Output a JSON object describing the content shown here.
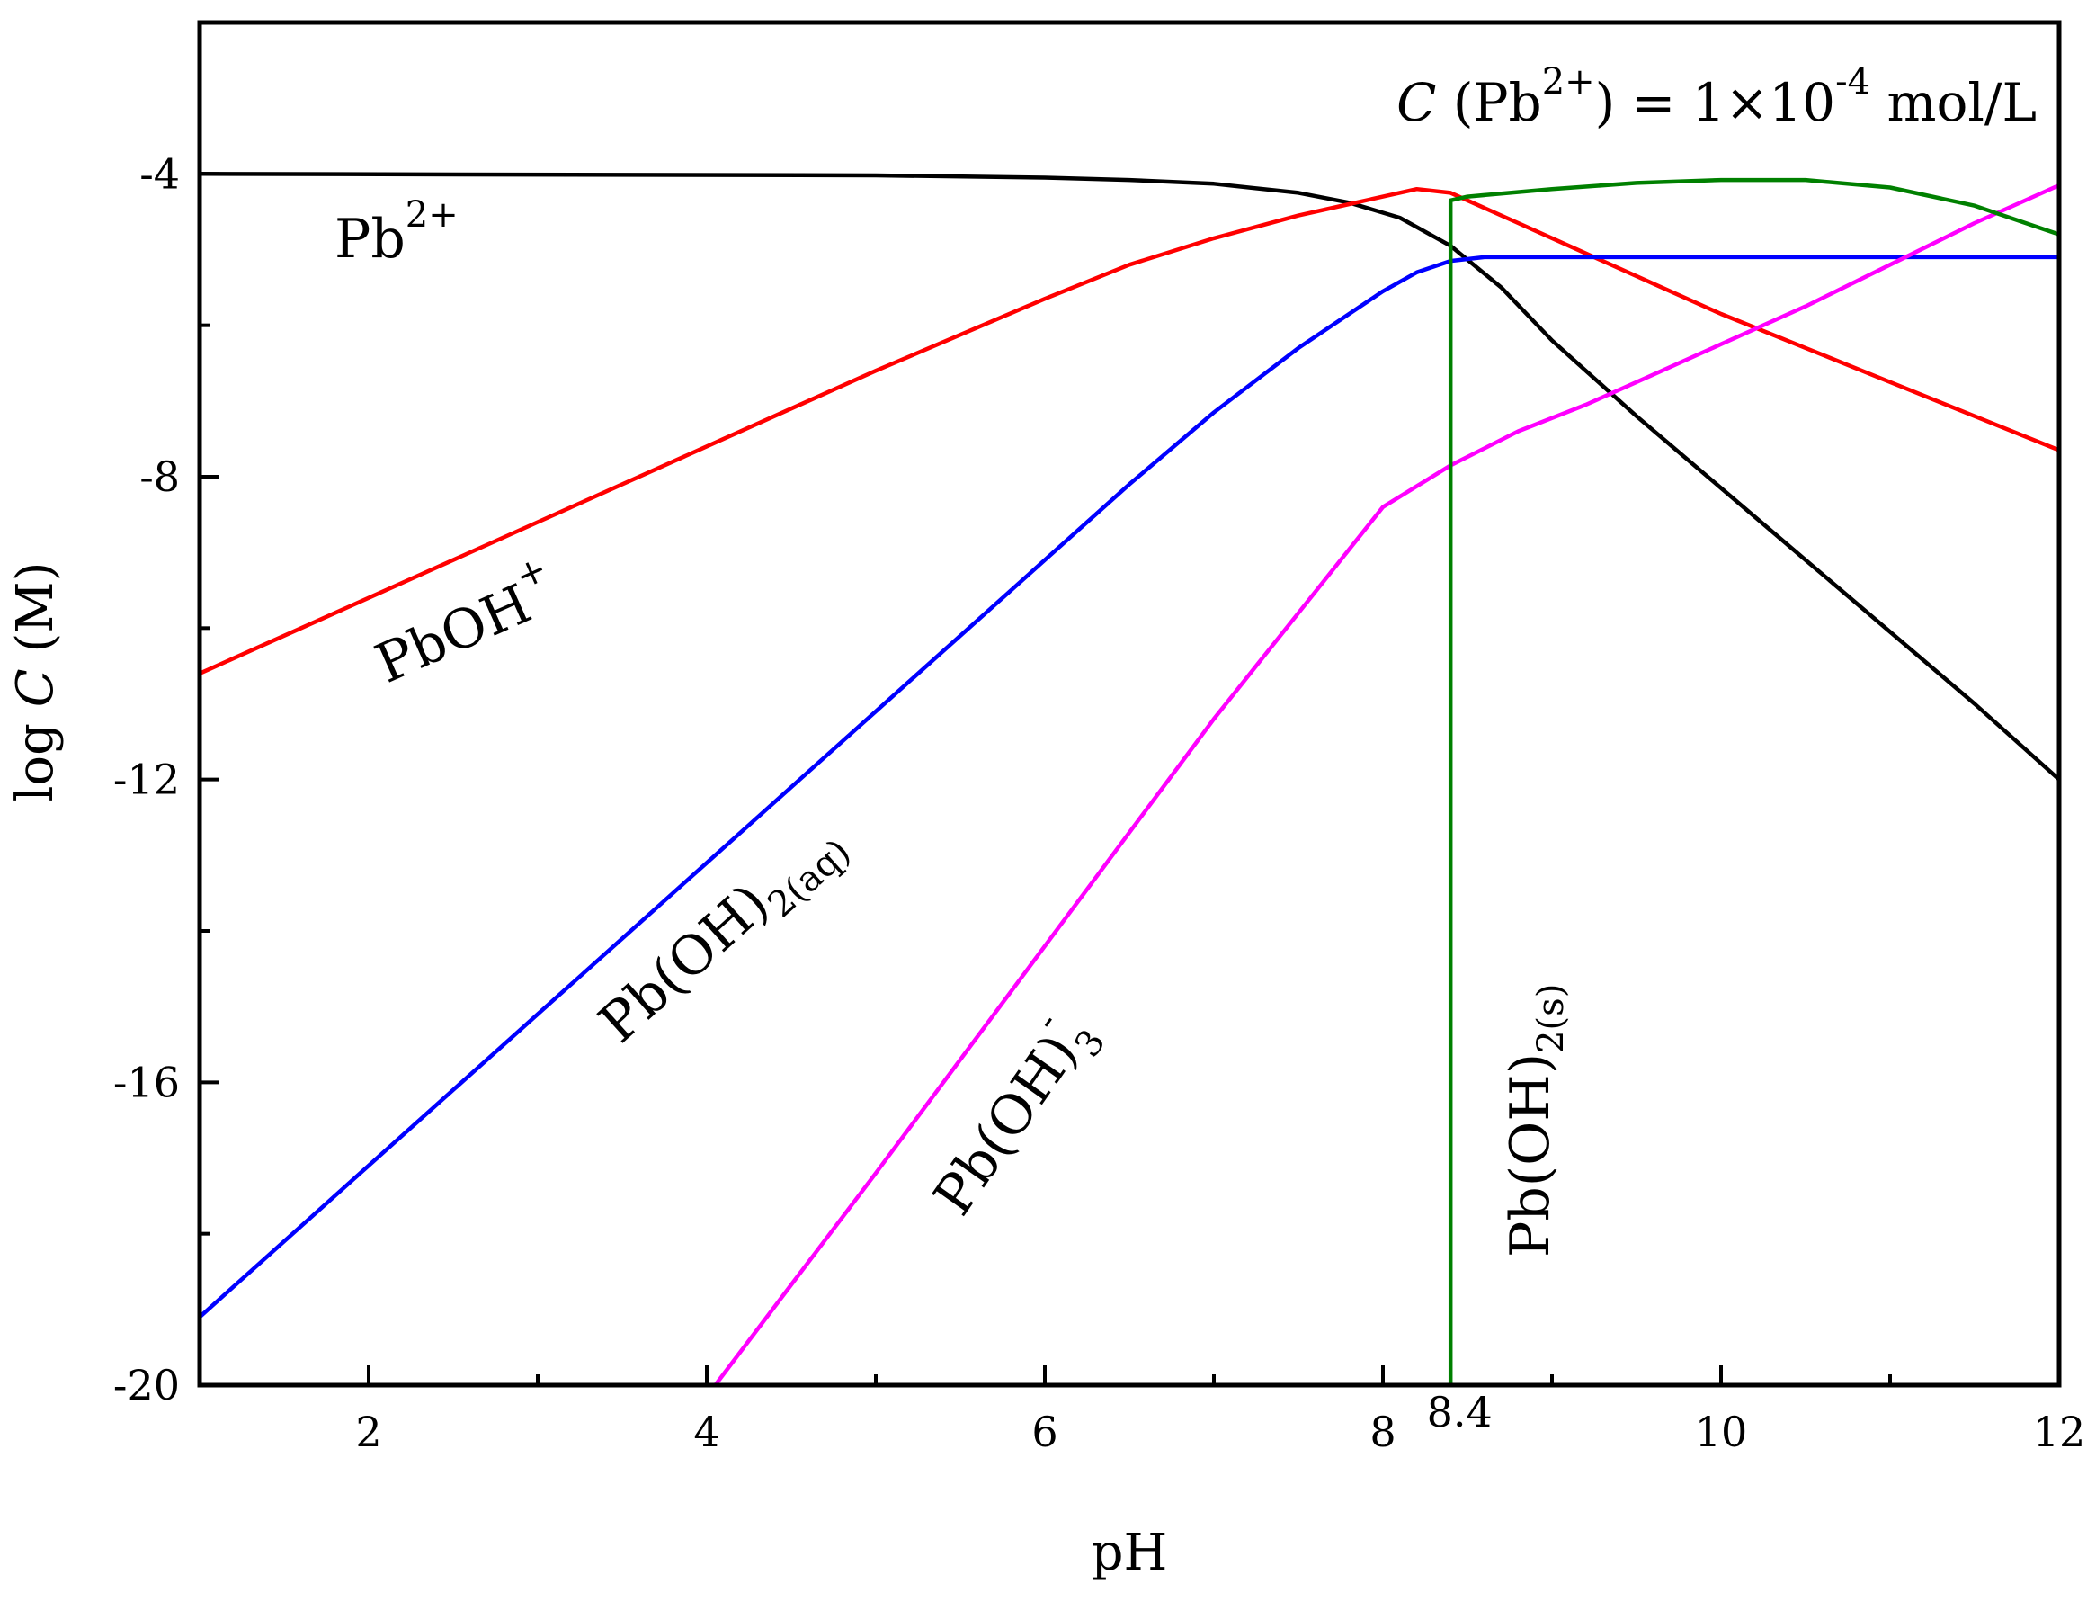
{
  "chart_data": {
    "type": "line",
    "title": "",
    "xlabel": "pH",
    "ylabel_prefix": "log ",
    "ylabel_var": "C",
    "ylabel_suffix": " (M)",
    "xlim": [
      1,
      12
    ],
    "ylim": [
      -20,
      -2
    ],
    "xticks_major": [
      2,
      4,
      6,
      8,
      10,
      12
    ],
    "xticks_major_labels": [
      "2",
      "4",
      "6",
      "8",
      "10",
      "12"
    ],
    "xticks_minor": [
      3,
      5,
      7,
      9,
      11
    ],
    "yticks_major": [
      -4,
      -8,
      -12,
      -16,
      -20
    ],
    "yticks_major_labels": [
      "-4",
      "-8",
      "-12",
      "-16",
      "-20"
    ],
    "yticks_minor": [
      -6,
      -10,
      -14,
      -18
    ],
    "marker": {
      "x": 8.4,
      "label": "8.4"
    },
    "concentration_note": {
      "var": "C",
      "open": " (Pb",
      "charge": "2+",
      "mid": ") = 1×10",
      "exp": "-4",
      "unit": " mol/L"
    },
    "series": [
      {
        "name": "Pb2+",
        "color": "#000000",
        "x": [
          1,
          5,
          6,
          6.5,
          7,
          7.5,
          7.8,
          8.1,
          8.4,
          8.7,
          9,
          9.5,
          10,
          10.5,
          11,
          11.5,
          12
        ],
        "y": [
          -4.0,
          -4.02,
          -4.05,
          -4.08,
          -4.13,
          -4.25,
          -4.38,
          -4.58,
          -4.95,
          -5.5,
          -6.2,
          -7.2,
          -8.15,
          -9.1,
          -10.05,
          -11.0,
          -12.0
        ]
      },
      {
        "name": "PbOH+",
        "color": "#ff0000",
        "x": [
          1,
          2,
          3,
          4,
          5,
          6,
          6.5,
          7,
          7.5,
          7.8,
          8.0,
          8.2,
          8.4,
          8.8,
          9.2,
          9.6,
          10,
          10.5,
          11,
          11.5,
          12
        ],
        "y": [
          -10.6,
          -9.6,
          -8.6,
          -7.6,
          -6.6,
          -5.65,
          -5.2,
          -4.85,
          -4.55,
          -4.4,
          -4.3,
          -4.2,
          -4.25,
          -4.65,
          -5.05,
          -5.45,
          -5.85,
          -6.3,
          -6.75,
          -7.2,
          -7.65
        ]
      },
      {
        "name": "Pb(OH)2(aq)",
        "color": "#0000ff",
        "x": [
          1,
          2,
          3,
          4,
          5,
          6,
          6.5,
          7,
          7.5,
          7.8,
          8.0,
          8.2,
          8.4,
          8.6,
          9,
          10,
          11,
          12
        ],
        "y": [
          -19.1,
          -17.1,
          -15.1,
          -13.1,
          -11.1,
          -9.1,
          -8.1,
          -7.15,
          -6.3,
          -5.85,
          -5.55,
          -5.3,
          -5.15,
          -5.1,
          -5.1,
          -5.1,
          -5.1,
          -5.1
        ]
      },
      {
        "name": "Pb(OH)3-",
        "color": "#ff00ff",
        "x": [
          4.05,
          5,
          6,
          7,
          7.5,
          8,
          8.4,
          8.8,
          9.2,
          9.6,
          10,
          10.5,
          11,
          11.5,
          12
        ],
        "y": [
          -20,
          -17.2,
          -14.2,
          -11.2,
          -9.8,
          -8.4,
          -7.85,
          -7.4,
          -7.05,
          -6.65,
          -6.25,
          -5.75,
          -5.2,
          -4.65,
          -4.15
        ]
      },
      {
        "name": "Pb(OH)2(s)",
        "color": "#008000",
        "x": [
          8.4,
          8.4,
          8.5,
          9,
          9.5,
          10,
          10.5,
          11,
          11.5,
          12
        ],
        "y": [
          -20,
          -4.35,
          -4.3,
          -4.2,
          -4.12,
          -4.08,
          -4.08,
          -4.18,
          -4.42,
          -4.8
        ]
      }
    ],
    "annotations": [
      {
        "base": "Pb",
        "sup": "2+",
        "sub": "",
        "color": "#000000"
      },
      {
        "base": "PbOH",
        "sup": "+",
        "sub": "",
        "color": "#000000"
      },
      {
        "base": "Pb(OH)",
        "sup": "",
        "sub": "2(aq)",
        "color": "#000000"
      },
      {
        "base": "Pb(OH)",
        "sup": "-",
        "sub": "3",
        "color": "#000000"
      },
      {
        "base": "Pb(OH)",
        "sup": "",
        "sub": "2(s)",
        "color": "#000000"
      }
    ]
  }
}
